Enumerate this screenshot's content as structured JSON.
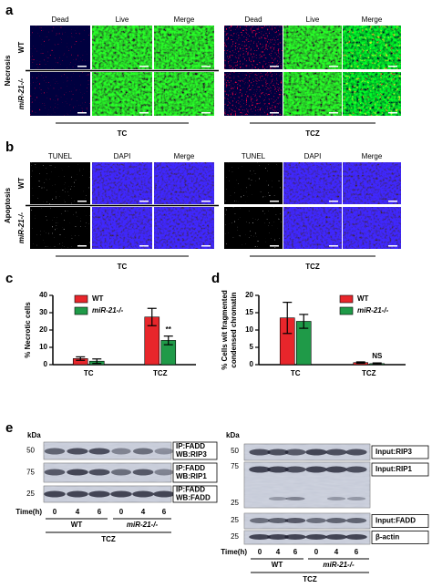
{
  "panel_a": {
    "label": "a",
    "title": "Necrosis",
    "rows": [
      "WT",
      "miR-21-/-"
    ],
    "groups": [
      {
        "name": "TC",
        "columns": [
          "Dead",
          "Live",
          "Merge"
        ]
      },
      {
        "name": "TCZ",
        "columns": [
          "Dead",
          "Live",
          "Merge"
        ]
      }
    ]
  },
  "panel_b": {
    "label": "b",
    "title": "Apoptosis",
    "rows": [
      "WT",
      "miR-21-/-"
    ],
    "groups": [
      {
        "name": "TC",
        "columns": [
          "TUNEL",
          "DAPI",
          "Merge"
        ]
      },
      {
        "name": "TCZ",
        "columns": [
          "TUNEL",
          "DAPI",
          "Merge"
        ]
      }
    ]
  },
  "chart_data": [
    {
      "type": "bar",
      "panel_label": "c",
      "y_label": [
        "% Necrotic cells"
      ],
      "categories": [
        "TC",
        "TCZ"
      ],
      "series": [
        {
          "name": "WT",
          "color": "#e8262b",
          "values": [
            3.5,
            27.5
          ],
          "errors": [
            1,
            5
          ]
        },
        {
          "name": "miR-21-/-",
          "color": "#1f9a48",
          "values": [
            2,
            14
          ],
          "errors": [
            1.3,
            2.5
          ]
        }
      ],
      "ylim": [
        0,
        40
      ],
      "yticks": [
        0,
        10,
        20,
        30,
        40
      ],
      "legend": "upper left",
      "annotation": "**"
    },
    {
      "type": "bar",
      "panel_label": "d",
      "y_label": [
        "% Cells wit fragmented",
        "condensed chromatin"
      ],
      "categories": [
        "TC",
        "TCZ"
      ],
      "series": [
        {
          "name": "WT",
          "color": "#e8262b",
          "values": [
            13.5,
            0.6
          ],
          "errors": [
            4.5,
            0.2
          ]
        },
        {
          "name": "miR-21-/-",
          "color": "#1f9a48",
          "values": [
            12.5,
            0.3
          ],
          "errors": [
            2,
            0.2
          ]
        }
      ],
      "ylim": [
        0,
        20
      ],
      "yticks": [
        0,
        5,
        10,
        15,
        20
      ],
      "legend": "upper right",
      "annotation": "NS"
    }
  ],
  "panel_e": {
    "label": "e",
    "left": {
      "kda_title": "kDa",
      "kda": [
        "50",
        "75",
        "25"
      ],
      "blots": [
        [
          "IP:FADD",
          "WB:RIP3"
        ],
        [
          "IP:FADD",
          "WB:RIP1"
        ],
        [
          "IP:FADD",
          "WB:FADD"
        ]
      ],
      "time_title": "Time(h)",
      "times": [
        "0",
        "4",
        "6",
        "0",
        "4",
        "6"
      ],
      "groups": [
        "WT",
        "miR-21-/-"
      ],
      "treatment": "TCZ"
    },
    "right": {
      "kda_title": "kDa",
      "kda": [
        "50",
        "75",
        "25",
        "25",
        "25"
      ],
      "blots": [
        "Input:RIP3",
        "Input:RIP1",
        "Input:FADD",
        "β-actin"
      ],
      "time_title": "Time(h)",
      "times": [
        "0",
        "4",
        "6",
        "0",
        "4",
        "6"
      ],
      "groups": [
        "WT",
        "miR-21-/-"
      ],
      "treatment": "TCZ"
    }
  }
}
